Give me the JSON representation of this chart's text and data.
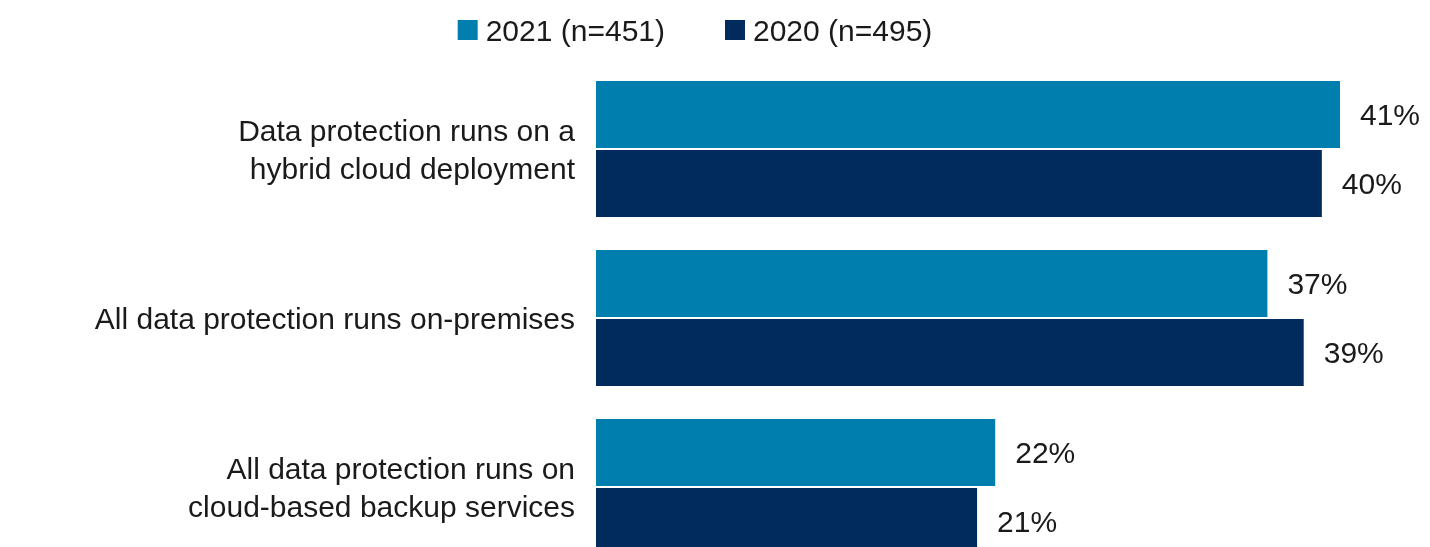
{
  "chart_data": {
    "type": "bar",
    "orientation": "horizontal",
    "categories": [
      "Data protection runs on a hybrid cloud deployment",
      "All data protection runs on-premises",
      "All data protection runs on cloud-based backup services"
    ],
    "series": [
      {
        "name": "2021 (n=451)",
        "color": "#007fae",
        "values": [
          41,
          37,
          22
        ],
        "value_labels": [
          "41%",
          "37%",
          "22%"
        ]
      },
      {
        "name": "2020 (n=495)",
        "color": "#002b5c",
        "values": [
          40,
          39,
          21
        ],
        "value_labels": [
          "40%",
          "39%",
          "21%"
        ]
      }
    ],
    "legend": "top"
  }
}
